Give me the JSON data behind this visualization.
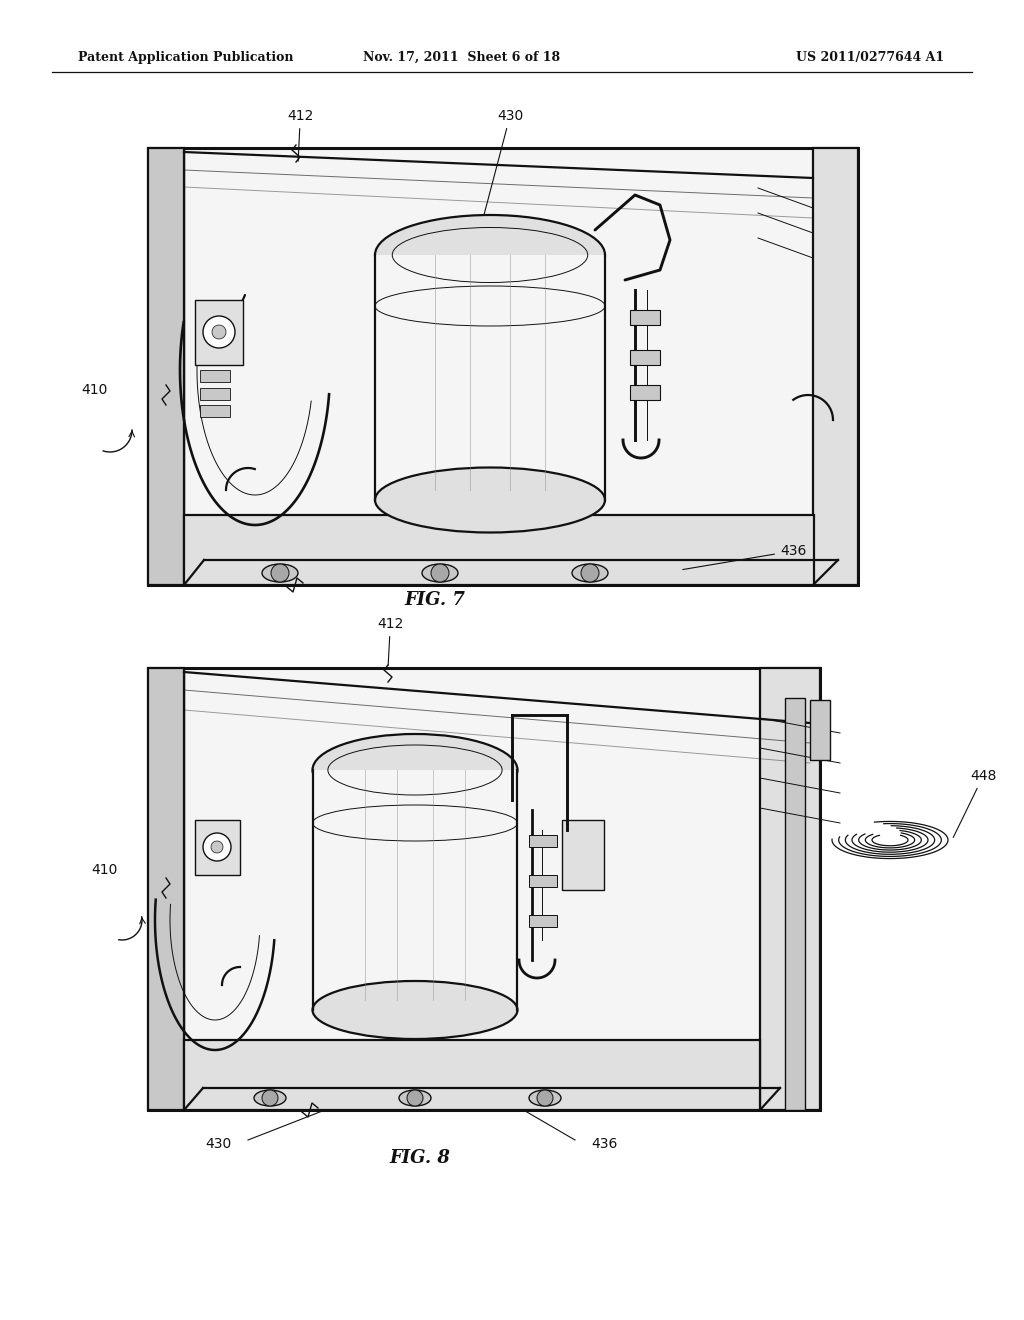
{
  "bg": "#ffffff",
  "lc": "#111111",
  "gray1": "#f5f5f5",
  "gray2": "#e0e0e0",
  "gray3": "#c8c8c8",
  "gray4": "#a8a8a8",
  "header_left": "Patent Application Publication",
  "header_mid": "Nov. 17, 2011  Sheet 6 of 18",
  "header_right": "US 2011/0277644 A1",
  "fig7_caption": "FIG. 7",
  "fig8_caption": "FIG. 8",
  "lfsz": 10,
  "hfsz": 9,
  "cfsz": 13
}
